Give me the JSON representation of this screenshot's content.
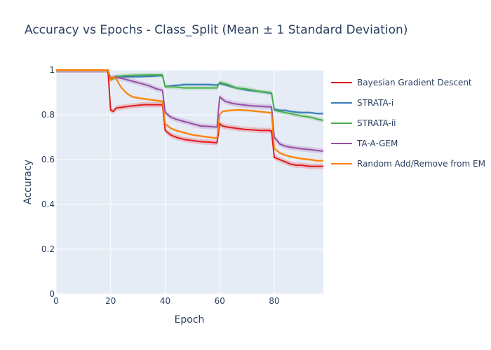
{
  "chart_data": {
    "type": "line",
    "title": "Accuracy vs Epochs - Class_Split (Mean ± 1 Standard Deviation)",
    "xlabel": "Epoch",
    "ylabel": "Accuracy",
    "xlim": [
      0,
      98
    ],
    "ylim": [
      0,
      1
    ],
    "x_ticks": [
      "0",
      "20",
      "40",
      "60",
      "80"
    ],
    "y_ticks": [
      "0",
      "0.2",
      "0.4",
      "0.6",
      "0.8",
      "1"
    ],
    "grid": true,
    "legend_position": "right",
    "series": [
      {
        "name": "Bayesian Gradient Descent",
        "color": "#e41a1c",
        "points": [
          [
            0,
            1.0
          ],
          [
            19,
            1.0
          ],
          [
            20,
            0.82
          ],
          [
            21,
            0.815
          ],
          [
            22,
            0.83
          ],
          [
            25,
            0.835
          ],
          [
            28,
            0.84
          ],
          [
            32,
            0.845
          ],
          [
            35,
            0.845
          ],
          [
            38,
            0.845
          ],
          [
            39,
            0.845
          ],
          [
            40,
            0.73
          ],
          [
            42,
            0.71
          ],
          [
            44,
            0.7
          ],
          [
            47,
            0.69
          ],
          [
            50,
            0.685
          ],
          [
            53,
            0.68
          ],
          [
            56,
            0.678
          ],
          [
            59,
            0.675
          ],
          [
            60,
            0.76
          ],
          [
            61,
            0.75
          ],
          [
            63,
            0.745
          ],
          [
            66,
            0.74
          ],
          [
            69,
            0.735
          ],
          [
            72,
            0.733
          ],
          [
            75,
            0.73
          ],
          [
            78,
            0.73
          ],
          [
            79,
            0.728
          ],
          [
            80,
            0.61
          ],
          [
            82,
            0.6
          ],
          [
            84,
            0.59
          ],
          [
            86,
            0.58
          ],
          [
            88,
            0.575
          ],
          [
            90,
            0.575
          ],
          [
            93,
            0.57
          ],
          [
            96,
            0.57
          ],
          [
            98,
            0.57
          ]
        ],
        "band": 0.012
      },
      {
        "name": "STRATA-i",
        "color": "#377eb8",
        "points": [
          [
            0,
            1.0
          ],
          [
            19,
            1.0
          ],
          [
            20,
            0.96
          ],
          [
            22,
            0.97
          ],
          [
            25,
            0.97
          ],
          [
            30,
            0.97
          ],
          [
            35,
            0.972
          ],
          [
            39,
            0.975
          ],
          [
            40,
            0.925
          ],
          [
            43,
            0.93
          ],
          [
            47,
            0.935
          ],
          [
            52,
            0.935
          ],
          [
            56,
            0.935
          ],
          [
            59,
            0.933
          ],
          [
            60,
            0.94
          ],
          [
            63,
            0.93
          ],
          [
            66,
            0.92
          ],
          [
            70,
            0.91
          ],
          [
            74,
            0.905
          ],
          [
            78,
            0.898
          ],
          [
            79,
            0.895
          ],
          [
            80,
            0.825
          ],
          [
            82,
            0.82
          ],
          [
            84,
            0.82
          ],
          [
            86,
            0.815
          ],
          [
            88,
            0.812
          ],
          [
            90,
            0.81
          ],
          [
            93,
            0.81
          ],
          [
            96,
            0.805
          ],
          [
            98,
            0.805
          ]
        ],
        "band": 0.006
      },
      {
        "name": "STRATA-ii",
        "color": "#4daf4a",
        "points": [
          [
            0,
            1.0
          ],
          [
            19,
            1.0
          ],
          [
            20,
            0.955
          ],
          [
            22,
            0.97
          ],
          [
            25,
            0.975
          ],
          [
            30,
            0.977
          ],
          [
            35,
            0.978
          ],
          [
            39,
            0.978
          ],
          [
            40,
            0.925
          ],
          [
            43,
            0.925
          ],
          [
            47,
            0.92
          ],
          [
            52,
            0.92
          ],
          [
            56,
            0.92
          ],
          [
            59,
            0.92
          ],
          [
            60,
            0.945
          ],
          [
            63,
            0.935
          ],
          [
            66,
            0.92
          ],
          [
            70,
            0.915
          ],
          [
            74,
            0.905
          ],
          [
            78,
            0.9
          ],
          [
            79,
            0.898
          ],
          [
            80,
            0.82
          ],
          [
            82,
            0.815
          ],
          [
            84,
            0.81
          ],
          [
            86,
            0.805
          ],
          [
            88,
            0.8
          ],
          [
            90,
            0.795
          ],
          [
            93,
            0.79
          ],
          [
            96,
            0.78
          ],
          [
            98,
            0.775
          ]
        ],
        "band": 0.01
      },
      {
        "name": "TA-A-GEM",
        "color": "#984ea3",
        "points": [
          [
            0,
            1.0
          ],
          [
            19,
            1.0
          ],
          [
            20,
            0.965
          ],
          [
            22,
            0.968
          ],
          [
            25,
            0.96
          ],
          [
            28,
            0.95
          ],
          [
            31,
            0.94
          ],
          [
            34,
            0.93
          ],
          [
            37,
            0.915
          ],
          [
            39,
            0.91
          ],
          [
            40,
            0.81
          ],
          [
            42,
            0.79
          ],
          [
            44,
            0.78
          ],
          [
            47,
            0.77
          ],
          [
            50,
            0.76
          ],
          [
            53,
            0.75
          ],
          [
            56,
            0.748
          ],
          [
            59,
            0.745
          ],
          [
            60,
            0.88
          ],
          [
            62,
            0.86
          ],
          [
            65,
            0.85
          ],
          [
            68,
            0.845
          ],
          [
            72,
            0.84
          ],
          [
            76,
            0.837
          ],
          [
            79,
            0.835
          ],
          [
            80,
            0.7
          ],
          [
            82,
            0.67
          ],
          [
            84,
            0.66
          ],
          [
            86,
            0.655
          ],
          [
            88,
            0.652
          ],
          [
            90,
            0.648
          ],
          [
            93,
            0.645
          ],
          [
            96,
            0.64
          ],
          [
            98,
            0.638
          ]
        ],
        "band": 0.012
      },
      {
        "name": "Random Add/Remove from EM",
        "color": "#ff7f00",
        "points": [
          [
            0,
            1.0
          ],
          [
            19,
            1.0
          ],
          [
            20,
            0.955
          ],
          [
            21,
            0.97
          ],
          [
            22,
            0.96
          ],
          [
            24,
            0.92
          ],
          [
            26,
            0.895
          ],
          [
            28,
            0.88
          ],
          [
            30,
            0.875
          ],
          [
            33,
            0.87
          ],
          [
            36,
            0.865
          ],
          [
            39,
            0.86
          ],
          [
            40,
            0.76
          ],
          [
            42,
            0.74
          ],
          [
            44,
            0.73
          ],
          [
            47,
            0.72
          ],
          [
            50,
            0.71
          ],
          [
            53,
            0.705
          ],
          [
            56,
            0.7
          ],
          [
            59,
            0.695
          ],
          [
            60,
            0.8
          ],
          [
            61,
            0.815
          ],
          [
            64,
            0.82
          ],
          [
            67,
            0.822
          ],
          [
            70,
            0.82
          ],
          [
            74,
            0.815
          ],
          [
            78,
            0.81
          ],
          [
            79,
            0.808
          ],
          [
            80,
            0.65
          ],
          [
            82,
            0.63
          ],
          [
            84,
            0.62
          ],
          [
            86,
            0.613
          ],
          [
            88,
            0.608
          ],
          [
            90,
            0.604
          ],
          [
            93,
            0.6
          ],
          [
            96,
            0.595
          ],
          [
            98,
            0.595
          ]
        ],
        "band": 0.006
      }
    ]
  }
}
